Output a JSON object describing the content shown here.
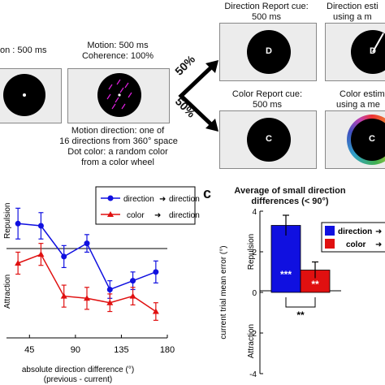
{
  "top": {
    "fixation_label": "on : 500 ms",
    "motion_label_1": "Motion: 500 ms",
    "motion_label_2": "Coherence: 100%",
    "motion_desc_1": "Motion direction: one of",
    "motion_desc_2": "16 directions from 360° space",
    "dot_desc_1": "Dot color: a random color",
    "dot_desc_2": "from a color wheel",
    "split_upper": "50%",
    "split_lower": "50%",
    "dir_cue_1": "Direction Report cue:",
    "dir_cue_2": "500 ms",
    "dir_est_1": "Direction esti",
    "dir_est_2": "using a m",
    "color_cue_1": "Color Report cue:",
    "color_cue_2": "500 ms",
    "color_est_1": "Color estim",
    "color_est_2": "using a me",
    "letter_D": "D",
    "letter_C": "C"
  },
  "panel_b": {
    "legend": [
      "direction",
      "direction",
      "color",
      "direction"
    ],
    "ylabel_top": "Repulsion",
    "ylabel_bottom": "Attraction",
    "xlabel_1": "absolute direction difference (°)",
    "xlabel_2": "(previous - current)",
    "xticks": [
      "45",
      "90",
      "135",
      "180"
    ]
  },
  "panel_c": {
    "panel_letter": "c",
    "title_1": "Average of small direction",
    "title_2": "differences (< 90°)",
    "ylabel": "current trial mean error (°)",
    "ylabel_top": "Repulsion",
    "ylabel_bottom": "Attraction",
    "yticks": [
      "4",
      "2",
      "0",
      "-2",
      "-4"
    ],
    "legend": [
      "direction",
      "color"
    ],
    "bar_dir_sig": "***",
    "bar_color_sig": "**",
    "comparison_sig": "**"
  },
  "colors": {
    "direction": "#1010e0",
    "color": "#e01010"
  },
  "chart_data": [
    {
      "type": "line",
      "xlabel": "absolute direction difference (°)\n(previous - current)",
      "xlim": [
        22.5,
        180
      ],
      "ylim": [
        -2.2,
        4.6
      ],
      "xticks": [
        45,
        90,
        135,
        180
      ],
      "series": [
        {
          "name": "direction → direction",
          "x": [
            33.75,
            56.25,
            78.75,
            101.25,
            123.75,
            146.25,
            168.75
          ],
          "y": [
            3.0,
            2.9,
            1.5,
            2.1,
            0.0,
            0.4,
            0.8
          ],
          "err": [
            0.7,
            0.6,
            0.5,
            0.4,
            0.4,
            0.4,
            0.5
          ]
        },
        {
          "name": "color → direction",
          "x": [
            33.75,
            56.25,
            78.75,
            101.25,
            123.75,
            146.25,
            168.75
          ],
          "y": [
            1.2,
            1.6,
            -0.3,
            -0.4,
            -0.6,
            -0.3,
            -1.0
          ],
          "err": [
            0.5,
            0.5,
            0.5,
            0.5,
            0.4,
            0.4,
            0.4
          ]
        }
      ]
    },
    {
      "type": "bar",
      "title": "Average of small direction differences (< 90°)",
      "ylabel": "current trial mean error (°)",
      "ylim": [
        -4,
        4
      ],
      "categories": [
        "direction → direction",
        "color → direction"
      ],
      "values": [
        3.3,
        1.1
      ],
      "err": [
        0.5,
        0.4
      ]
    }
  ]
}
